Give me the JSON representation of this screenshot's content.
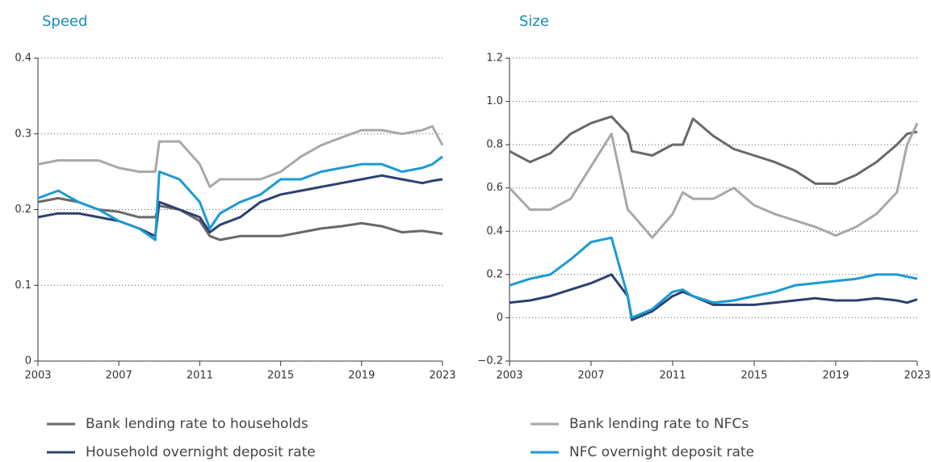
{
  "chart_data": [
    {
      "type": "line",
      "title": "Speed",
      "x": [
        2003,
        2004,
        2005,
        2006,
        2007,
        2008,
        2008.8,
        2009,
        2010,
        2011,
        2011.5,
        2012,
        2013,
        2014,
        2015,
        2016,
        2017,
        2018,
        2019,
        2020,
        2021,
        2022,
        2022.5,
        2023
      ],
      "xlim": [
        2003,
        2023
      ],
      "xticks": [
        2003,
        2007,
        2011,
        2015,
        2019,
        2023
      ],
      "ylim": [
        0,
        0.4
      ],
      "yticks": [
        0,
        0.1,
        0.2,
        0.3,
        0.4
      ],
      "grid": true,
      "series": [
        {
          "name": "Bank lending rate to households",
          "color": "#686868",
          "values": [
            0.21,
            0.215,
            0.21,
            0.2,
            0.197,
            0.19,
            0.19,
            0.205,
            0.2,
            0.185,
            0.165,
            0.16,
            0.165,
            0.165,
            0.165,
            0.17,
            0.175,
            0.178,
            0.182,
            0.178,
            0.17,
            0.172,
            0.17,
            0.168
          ]
        },
        {
          "name": "Household overnight deposit rate",
          "color": "#2b4170",
          "values": [
            0.19,
            0.195,
            0.195,
            0.19,
            0.185,
            0.175,
            0.165,
            0.21,
            0.2,
            0.19,
            0.17,
            0.18,
            0.19,
            0.21,
            0.22,
            0.225,
            0.23,
            0.235,
            0.24,
            0.245,
            0.24,
            0.235,
            0.238,
            0.24
          ]
        },
        {
          "name": "Bank lending rate to NFCs",
          "color": "#a8a8a8",
          "values": [
            0.26,
            0.265,
            0.265,
            0.265,
            0.255,
            0.25,
            0.25,
            0.29,
            0.29,
            0.26,
            0.23,
            0.24,
            0.24,
            0.24,
            0.25,
            0.27,
            0.285,
            0.295,
            0.305,
            0.305,
            0.3,
            0.305,
            0.31,
            0.285
          ]
        },
        {
          "name": "NFC overnight deposit rate",
          "color": "#1a9ad6",
          "values": [
            0.215,
            0.225,
            0.21,
            0.2,
            0.185,
            0.175,
            0.16,
            0.25,
            0.24,
            0.21,
            0.175,
            0.195,
            0.21,
            0.22,
            0.24,
            0.24,
            0.25,
            0.255,
            0.26,
            0.26,
            0.25,
            0.255,
            0.26,
            0.27
          ]
        }
      ]
    },
    {
      "type": "line",
      "title": "Size",
      "x": [
        2003,
        2004,
        2005,
        2006,
        2007,
        2008,
        2008.8,
        2009,
        2010,
        2011,
        2011.5,
        2012,
        2013,
        2014,
        2015,
        2016,
        2017,
        2018,
        2019,
        2020,
        2021,
        2022,
        2022.5,
        2023
      ],
      "xlim": [
        2003,
        2023
      ],
      "xticks": [
        2003,
        2007,
        2011,
        2015,
        2019,
        2023
      ],
      "ylim": [
        -0.2,
        1.2
      ],
      "yticks": [
        {
          "value": -0.2,
          "label": "−0.2"
        },
        0,
        0.2,
        0.4,
        0.6,
        0.8,
        {
          "value": 1,
          "label": "1.0"
        },
        1.2
      ],
      "grid": true,
      "series": [
        {
          "color": "#686868",
          "values": [
            0.77,
            0.72,
            0.76,
            0.85,
            0.9,
            0.93,
            0.85,
            0.77,
            0.75,
            0.8,
            0.8,
            0.92,
            0.84,
            0.78,
            0.75,
            0.72,
            0.68,
            0.62,
            0.62,
            0.66,
            0.72,
            0.8,
            0.85,
            0.86
          ]
        },
        {
          "color": "#2b4170",
          "values": [
            0.07,
            0.08,
            0.1,
            0.13,
            0.16,
            0.2,
            0.1,
            -0.01,
            0.03,
            0.1,
            0.12,
            0.1,
            0.06,
            0.06,
            0.06,
            0.07,
            0.08,
            0.09,
            0.08,
            0.08,
            0.09,
            0.08,
            0.07,
            0.085
          ]
        },
        {
          "color": "#a8a8a8",
          "values": [
            0.6,
            0.5,
            0.5,
            0.55,
            0.7,
            0.85,
            0.5,
            0.48,
            0.37,
            0.48,
            0.58,
            0.55,
            0.55,
            0.6,
            0.52,
            0.48,
            0.45,
            0.42,
            0.38,
            0.42,
            0.48,
            0.58,
            0.8,
            0.9
          ]
        },
        {
          "color": "#1a9ad6",
          "values": [
            0.15,
            0.18,
            0.2,
            0.27,
            0.35,
            0.37,
            0.1,
            0,
            0.04,
            0.12,
            0.13,
            0.1,
            0.07,
            0.08,
            0.1,
            0.12,
            0.15,
            0.16,
            0.17,
            0.18,
            0.2,
            0.2,
            0.19,
            0.18
          ]
        }
      ]
    }
  ]
}
